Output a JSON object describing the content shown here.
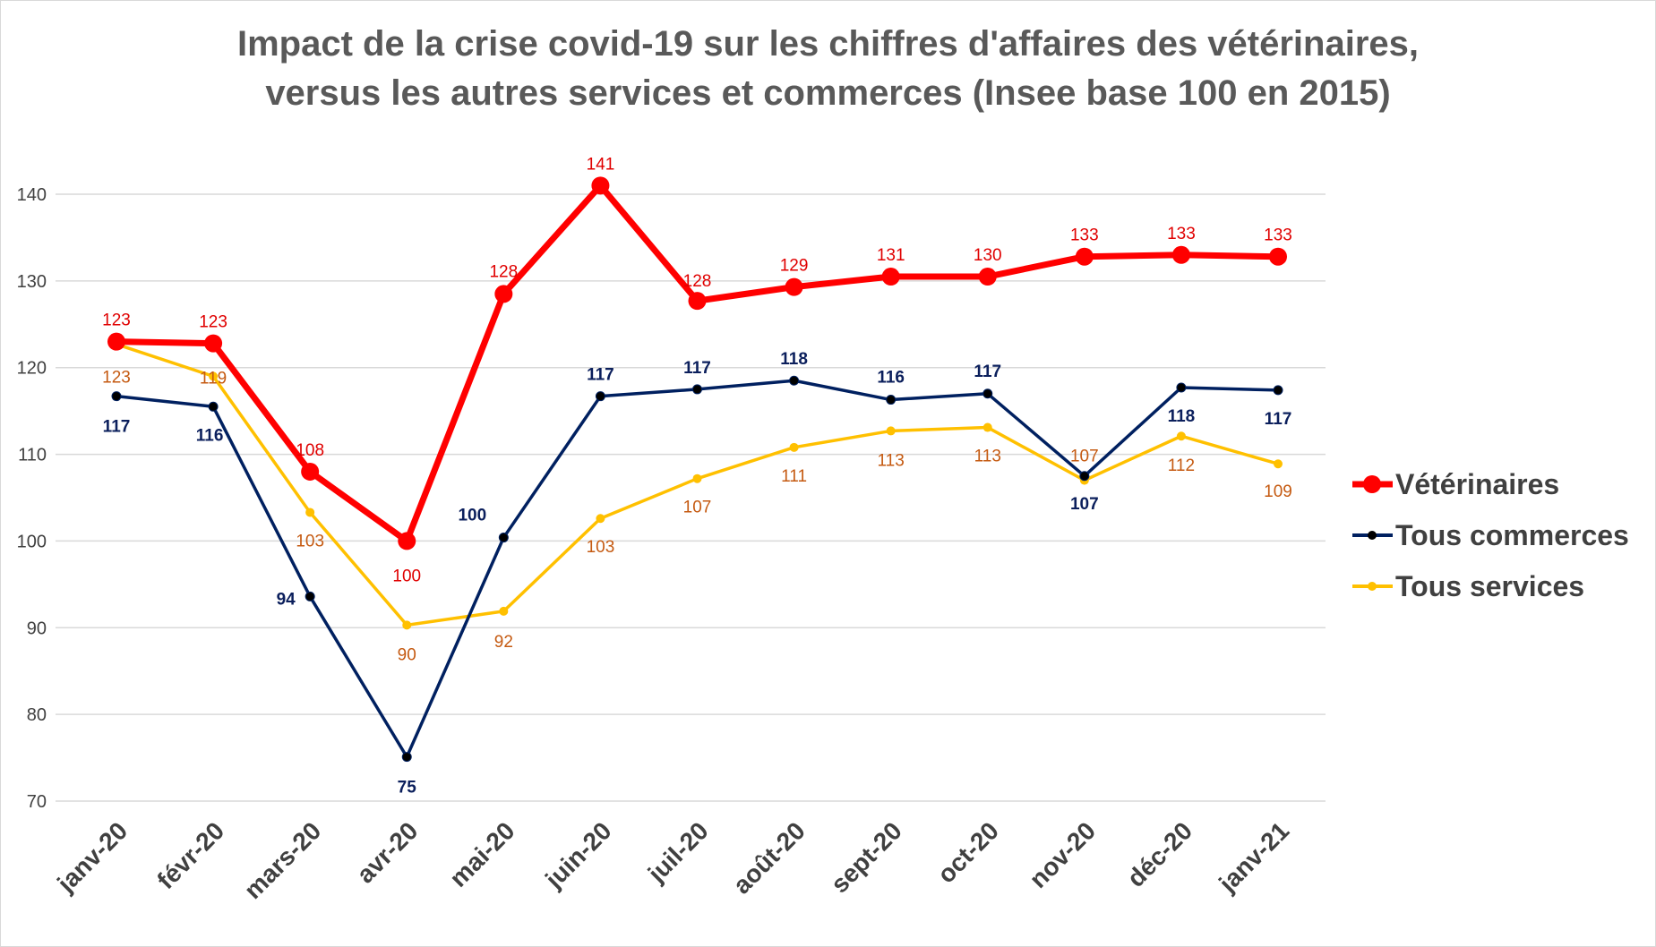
{
  "chart_data": {
    "type": "line",
    "title_lines": [
      "Impact de la crise covid-19 sur les chiffres d'affaires des vétérinaires,",
      "versus les autres services et commerces (Insee base 100 en 2015)"
    ],
    "categories": [
      "janv-20",
      "févr-20",
      "mars-20",
      "avr-20",
      "mai-20",
      "juin-20",
      "juil-20",
      "août-20",
      "sept-20",
      "oct-20",
      "nov-20",
      "déc-20",
      "janv-21"
    ],
    "ylim": [
      70,
      140
    ],
    "yticks": [
      70,
      80,
      90,
      100,
      110,
      120,
      130,
      140
    ],
    "grid": true,
    "legend_position": "right",
    "series": [
      {
        "name": "Vétérinaires",
        "color": "#ff0000",
        "label_color": "#e00000",
        "values": [
          123,
          122.8,
          108,
          100,
          128.5,
          141,
          127.7,
          129.3,
          130.5,
          130.5,
          132.8,
          133,
          132.8
        ],
        "labels": [
          "123",
          "123",
          "108",
          "100",
          "128",
          "141",
          "128",
          "129",
          "131",
          "130",
          "133",
          "133",
          "133"
        ]
      },
      {
        "name": "Tous commerces",
        "color": "#002060",
        "label_color": "#0b1f5c",
        "values": [
          116.7,
          115.5,
          93.6,
          75.1,
          100.4,
          116.7,
          117.5,
          118.5,
          116.3,
          117,
          107.5,
          117.7,
          117.4
        ],
        "labels": [
          "117",
          "116",
          "94",
          "75",
          "100",
          "117",
          "117",
          "118",
          "116",
          "117",
          "107",
          "118",
          "117"
        ]
      },
      {
        "name": "Tous services",
        "color": "#ffc000",
        "label_color": "#c55a11",
        "values": [
          122.7,
          119,
          103.3,
          90.3,
          91.9,
          102.6,
          107.2,
          110.8,
          112.7,
          113.1,
          107,
          112.1,
          108.9
        ],
        "labels": [
          "123",
          "119",
          "103",
          "90",
          "92",
          "103",
          "107",
          "111",
          "113",
          "113",
          "107",
          "112",
          "109"
        ]
      }
    ]
  }
}
